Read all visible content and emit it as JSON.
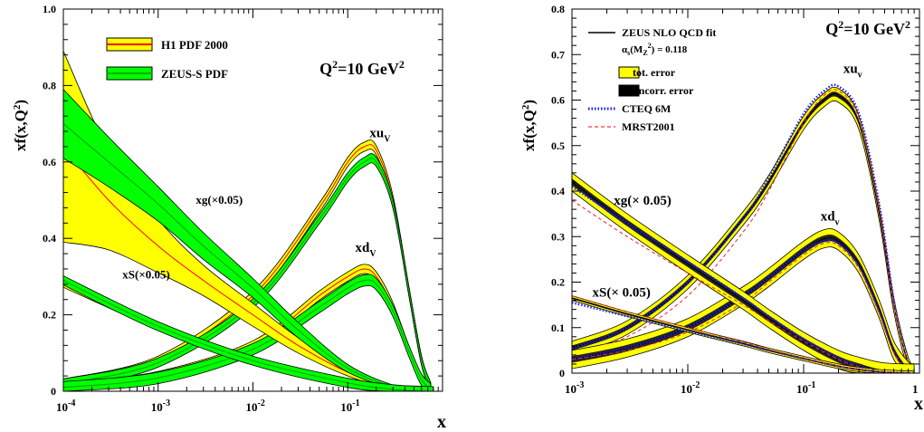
{
  "chart_data": [
    {
      "type": "line",
      "title": "",
      "xlabel": "x",
      "ylabel": "xf(x,Q2)",
      "ylabel_main": "xf(x,Q",
      "ylabel_sup": "2",
      "ylabel_tail": ")",
      "x_scale": "log",
      "xlim": [
        0.0001,
        1
      ],
      "ylim": [
        0,
        1.0
      ],
      "x_tick_labels": [
        {
          "x": 0.0001,
          "base": "10",
          "exp": "-4"
        },
        {
          "x": 0.001,
          "base": "10",
          "exp": "-3"
        },
        {
          "x": 0.01,
          "base": "10",
          "exp": "-2"
        },
        {
          "x": 0.1,
          "base": "10",
          "exp": "-1"
        }
      ],
      "y_tick_labels": [
        {
          "y": 0,
          "label": "0"
        },
        {
          "y": 0.2,
          "label": "0.2"
        },
        {
          "y": 0.4,
          "label": "0.4"
        },
        {
          "y": 0.6,
          "label": "0.6"
        },
        {
          "y": 0.8,
          "label": "0.8"
        },
        {
          "y": 1.0,
          "label": "1.0"
        }
      ],
      "q2_label": {
        "pre": "Q",
        "sup": "2",
        "post": "=10 GeV",
        "sup2": "2"
      },
      "legend": [
        {
          "label": "H1 PDF 2000",
          "fill": "#ffff00",
          "line": "#ff0000"
        },
        {
          "label": "ZEUS-S PDF",
          "fill": "#00ff00",
          "line": "#00b000"
        }
      ],
      "annotations": [
        {
          "id": "xuv",
          "base": "xu",
          "sub": "V",
          "x": 0.17,
          "y": 0.665
        },
        {
          "id": "xdv",
          "base": "xd",
          "sub": "V",
          "x": 0.12,
          "y": 0.365
        },
        {
          "id": "xg",
          "text": "xg(×0.05)",
          "x": 0.0025,
          "y": 0.49
        },
        {
          "id": "xs",
          "text": "xS(×0.05)",
          "x": 0.00042,
          "y": 0.295
        }
      ],
      "series": [
        {
          "name": "H1 PDF 2000",
          "pdf": "xu_v",
          "x": [
            0.0001,
            0.001,
            0.01,
            0.05,
            0.1,
            0.15,
            0.2,
            0.3,
            0.45,
            0.6,
            0.75
          ],
          "y": [
            0.02,
            0.08,
            0.25,
            0.48,
            0.6,
            0.64,
            0.63,
            0.5,
            0.25,
            0.08,
            0.01
          ],
          "band": 0.012
        },
        {
          "name": "ZEUS-S PDF",
          "pdf": "xu_v",
          "x": [
            0.0001,
            0.001,
            0.01,
            0.05,
            0.1,
            0.15,
            0.2,
            0.3,
            0.45,
            0.6,
            0.75
          ],
          "y": [
            0.02,
            0.075,
            0.23,
            0.45,
            0.56,
            0.6,
            0.6,
            0.49,
            0.25,
            0.08,
            0.01
          ],
          "band": 0.012
        },
        {
          "name": "H1 PDF 2000",
          "pdf": "xd_v",
          "x": [
            0.0001,
            0.001,
            0.01,
            0.05,
            0.1,
            0.15,
            0.2,
            0.3,
            0.45,
            0.6,
            0.75
          ],
          "y": [
            0.01,
            0.04,
            0.12,
            0.25,
            0.3,
            0.32,
            0.3,
            0.22,
            0.1,
            0.03,
            0.005
          ],
          "band": 0.012
        },
        {
          "name": "ZEUS-S PDF",
          "pdf": "xd_v",
          "x": [
            0.0001,
            0.001,
            0.01,
            0.05,
            0.1,
            0.15,
            0.2,
            0.3,
            0.45,
            0.6,
            0.75
          ],
          "y": [
            0.01,
            0.035,
            0.11,
            0.22,
            0.27,
            0.29,
            0.28,
            0.21,
            0.1,
            0.03,
            0.005
          ],
          "band": 0.015
        },
        {
          "name": "H1 PDF 2000",
          "pdf": "xg(x0.05)",
          "x": [
            0.0001,
            0.0003,
            0.001,
            0.003,
            0.01,
            0.03,
            0.1,
            0.3,
            0.6,
            0.8
          ],
          "y": [
            0.64,
            0.5,
            0.38,
            0.29,
            0.2,
            0.12,
            0.05,
            0.01,
            0.001,
            0.0
          ],
          "band_lo": [
            0.25,
            0.13,
            0.07,
            0.04,
            0.03,
            0.02,
            0.01,
            0.005,
            0.001,
            0.0
          ],
          "band_hi": [
            0.25,
            0.13,
            0.07,
            0.04,
            0.03,
            0.02,
            0.01,
            0.005,
            0.001,
            0.0
          ]
        },
        {
          "name": "ZEUS-S PDF",
          "pdf": "xg(x0.05)",
          "x": [
            0.0001,
            0.0003,
            0.001,
            0.003,
            0.01,
            0.03,
            0.1,
            0.3,
            0.6,
            0.8
          ],
          "y": [
            0.7,
            0.6,
            0.49,
            0.38,
            0.27,
            0.16,
            0.06,
            0.012,
            0.001,
            0.0
          ],
          "band_lo": [
            0.09,
            0.065,
            0.045,
            0.035,
            0.025,
            0.02,
            0.01,
            0.004,
            0.001,
            0.0
          ],
          "band_hi": [
            0.09,
            0.065,
            0.045,
            0.035,
            0.025,
            0.02,
            0.01,
            0.004,
            0.001,
            0.0
          ]
        },
        {
          "name": "H1 PDF 2000",
          "pdf": "xS(x0.05)",
          "x": [
            0.0001,
            0.001,
            0.01,
            0.1,
            0.3,
            0.6,
            0.8
          ],
          "y": [
            0.28,
            0.17,
            0.08,
            0.025,
            0.006,
            0.001,
            0.0
          ],
          "band": 0.008
        },
        {
          "name": "ZEUS-S PDF",
          "pdf": "xS(x0.05)",
          "x": [
            0.0001,
            0.001,
            0.01,
            0.1,
            0.3,
            0.6,
            0.8
          ],
          "y": [
            0.29,
            0.17,
            0.08,
            0.022,
            0.005,
            0.001,
            0.0
          ],
          "band": 0.012
        }
      ]
    },
    {
      "type": "line",
      "title": "",
      "xlabel": "x",
      "ylabel": "xf(x,Q2)",
      "ylabel_main": "xf(x,Q",
      "ylabel_sup": "2",
      "ylabel_tail": ")",
      "x_scale": "log",
      "xlim": [
        0.001,
        1
      ],
      "ylim": [
        0,
        0.8
      ],
      "x_tick_labels": [
        {
          "x": 0.001,
          "base": "10",
          "exp": "-3"
        },
        {
          "x": 0.01,
          "base": "10",
          "exp": "-2"
        },
        {
          "x": 0.1,
          "base": "10",
          "exp": "-1"
        },
        {
          "x": 1,
          "base": "1",
          "exp": ""
        }
      ],
      "y_tick_labels": [
        {
          "y": 0,
          "label": "0"
        },
        {
          "y": 0.1,
          "label": "0.1"
        },
        {
          "y": 0.2,
          "label": "0.2"
        },
        {
          "y": 0.3,
          "label": "0.3"
        },
        {
          "y": 0.4,
          "label": "0.4"
        },
        {
          "y": 0.5,
          "label": "0.5"
        },
        {
          "y": 0.6,
          "label": "0.6"
        },
        {
          "y": 0.7,
          "label": "0.7"
        },
        {
          "y": 0.8,
          "label": "0.8"
        }
      ],
      "q2_label": {
        "pre": "Q",
        "sup": "2",
        "post": "=10 GeV",
        "sup2": "2"
      },
      "legend": [
        {
          "label": "ZEUS NLO QCD fit",
          "style": "line",
          "color": "#000000"
        },
        {
          "label": "= 0.118",
          "prefix": "α",
          "prefix_sub": "s",
          "mid": "(M",
          "mid_sub": "Z",
          "mid_sup": "2",
          "mid_post": ")",
          "style": "none",
          "color": "#000000"
        },
        {
          "label": "tot. error",
          "style": "box",
          "color": "#ffff00"
        },
        {
          "label": "uncorr. error",
          "style": "box",
          "color": "#000000"
        },
        {
          "label": "CTEQ 6M",
          "style": "dotted",
          "color": "#1a1aff"
        },
        {
          "label": "MRST2001",
          "style": "dashed",
          "color": "#ff0000"
        }
      ],
      "annotations": [
        {
          "id": "xuv",
          "base": "xu",
          "sub": "v",
          "x": 0.22,
          "y": 0.66
        },
        {
          "id": "xdv",
          "base": "xd",
          "sub": "v",
          "x": 0.14,
          "y": 0.335
        },
        {
          "id": "xg",
          "text": "xg(× 0.05)",
          "x": 0.0023,
          "y": 0.37
        },
        {
          "id": "xs",
          "text": "xS(× 0.05)",
          "x": 0.0015,
          "y": 0.168
        }
      ],
      "series": [
        {
          "name": "ZEUS NLO QCD fit",
          "pdf": "xu_v",
          "x": [
            0.001,
            0.003,
            0.01,
            0.03,
            0.05,
            0.1,
            0.15,
            0.2,
            0.3,
            0.45,
            0.6,
            0.8,
            0.9
          ],
          "y": [
            0.055,
            0.1,
            0.2,
            0.34,
            0.42,
            0.55,
            0.6,
            0.61,
            0.55,
            0.35,
            0.15,
            0.02,
            0.003
          ],
          "band": 0.015
        },
        {
          "name": "CTEQ 6M",
          "pdf": "xu_v",
          "x": [
            0.001,
            0.003,
            0.01,
            0.03,
            0.05,
            0.1,
            0.15,
            0.2,
            0.3,
            0.45,
            0.6,
            0.8,
            0.9
          ],
          "y": [
            0.055,
            0.1,
            0.2,
            0.34,
            0.43,
            0.57,
            0.62,
            0.63,
            0.57,
            0.37,
            0.16,
            0.02,
            0.003
          ]
        },
        {
          "name": "MRST2001",
          "pdf": "xu_v",
          "x": [
            0.001,
            0.003,
            0.01,
            0.03,
            0.05,
            0.1,
            0.15,
            0.2,
            0.3,
            0.45,
            0.6,
            0.8,
            0.9
          ],
          "y": [
            0.045,
            0.08,
            0.17,
            0.31,
            0.4,
            0.55,
            0.61,
            0.62,
            0.56,
            0.36,
            0.15,
            0.02,
            0.003
          ]
        },
        {
          "name": "ZEUS NLO QCD fit",
          "pdf": "xd_v",
          "x": [
            0.001,
            0.003,
            0.01,
            0.03,
            0.05,
            0.1,
            0.15,
            0.2,
            0.3,
            0.45,
            0.6,
            0.8,
            0.9
          ],
          "y": [
            0.03,
            0.055,
            0.1,
            0.17,
            0.21,
            0.27,
            0.295,
            0.29,
            0.24,
            0.14,
            0.05,
            0.005,
            0.001
          ],
          "band": 0.02
        },
        {
          "name": "CTEQ 6M",
          "pdf": "xd_v",
          "x": [
            0.001,
            0.003,
            0.01,
            0.03,
            0.05,
            0.1,
            0.15,
            0.2,
            0.3,
            0.45,
            0.6,
            0.8,
            0.9
          ],
          "y": [
            0.03,
            0.055,
            0.1,
            0.17,
            0.21,
            0.27,
            0.29,
            0.285,
            0.235,
            0.135,
            0.048,
            0.005,
            0.001
          ]
        },
        {
          "name": "MRST2001",
          "pdf": "xd_v",
          "x": [
            0.001,
            0.003,
            0.01,
            0.03,
            0.05,
            0.1,
            0.15,
            0.2,
            0.3,
            0.45,
            0.6,
            0.8,
            0.9
          ],
          "y": [
            0.03,
            0.05,
            0.09,
            0.155,
            0.2,
            0.26,
            0.285,
            0.28,
            0.23,
            0.13,
            0.045,
            0.005,
            0.001
          ]
        },
        {
          "name": "ZEUS NLO QCD fit",
          "pdf": "xg(x0.05)",
          "x": [
            0.001,
            0.003,
            0.01,
            0.03,
            0.05,
            0.1,
            0.2,
            0.3,
            0.45,
            0.6,
            0.8,
            0.9
          ],
          "y": [
            0.42,
            0.33,
            0.24,
            0.16,
            0.12,
            0.07,
            0.03,
            0.015,
            0.004,
            0.001,
            0.0,
            0.0
          ],
          "band": 0.02
        },
        {
          "name": "CTEQ 6M",
          "pdf": "xg(x0.05)",
          "x": [
            0.001,
            0.003,
            0.01,
            0.03,
            0.05,
            0.1,
            0.2,
            0.3,
            0.45,
            0.6,
            0.8,
            0.9
          ],
          "y": [
            0.41,
            0.33,
            0.245,
            0.165,
            0.125,
            0.075,
            0.032,
            0.015,
            0.004,
            0.001,
            0.0,
            0.0
          ]
        },
        {
          "name": "MRST2001",
          "pdf": "xg(x0.05)",
          "x": [
            0.001,
            0.003,
            0.01,
            0.03,
            0.05,
            0.1,
            0.2,
            0.3,
            0.45,
            0.6,
            0.8,
            0.9
          ],
          "y": [
            0.38,
            0.3,
            0.22,
            0.15,
            0.115,
            0.07,
            0.03,
            0.014,
            0.004,
            0.001,
            0.0,
            0.0
          ]
        },
        {
          "name": "ZEUS NLO QCD fit",
          "pdf": "xS(x0.05)",
          "x": [
            0.001,
            0.003,
            0.01,
            0.03,
            0.05,
            0.1,
            0.2,
            0.3,
            0.45,
            0.6,
            0.8,
            0.9
          ],
          "y": [
            0.165,
            0.13,
            0.095,
            0.065,
            0.05,
            0.032,
            0.015,
            0.008,
            0.003,
            0.001,
            0.0,
            0.0
          ],
          "band": 0.005
        },
        {
          "name": "CTEQ 6M",
          "pdf": "xS(x0.05)",
          "x": [
            0.001,
            0.003,
            0.01,
            0.03,
            0.05,
            0.1,
            0.2,
            0.3,
            0.45,
            0.6,
            0.8,
            0.9
          ],
          "y": [
            0.155,
            0.125,
            0.093,
            0.064,
            0.05,
            0.032,
            0.015,
            0.008,
            0.003,
            0.001,
            0.0,
            0.0
          ]
        },
        {
          "name": "MRST2001",
          "pdf": "xS(x0.05)",
          "x": [
            0.001,
            0.003,
            0.01,
            0.03,
            0.05,
            0.1,
            0.2,
            0.3,
            0.45,
            0.6,
            0.8,
            0.9
          ],
          "y": [
            0.17,
            0.135,
            0.1,
            0.068,
            0.052,
            0.033,
            0.015,
            0.008,
            0.003,
            0.001,
            0.0,
            0.0
          ]
        }
      ]
    }
  ]
}
